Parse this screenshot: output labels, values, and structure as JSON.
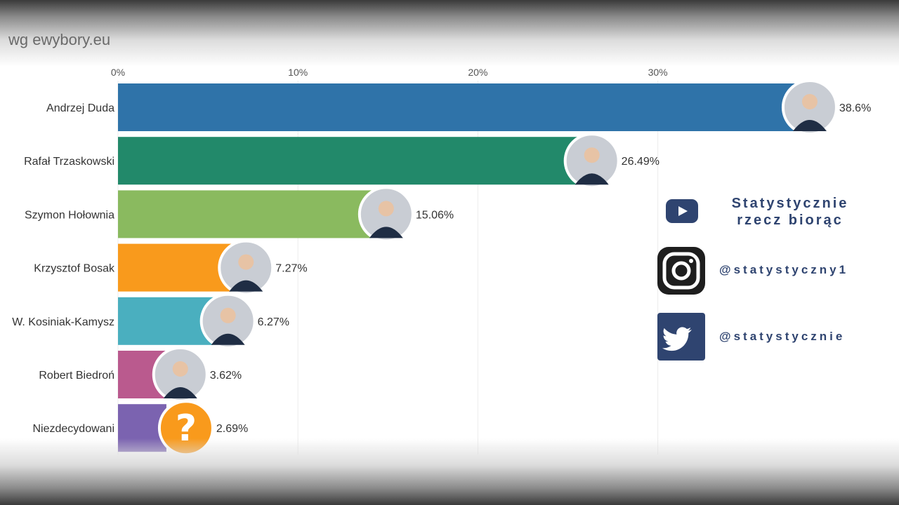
{
  "source_label": "wg ewybory.eu",
  "chart_data": {
    "type": "bar",
    "orientation": "horizontal",
    "x_ticks": [
      "0%",
      "10%",
      "20%",
      "30%"
    ],
    "xlim": [
      0,
      40
    ],
    "grid": true,
    "categories": [
      "Andrzej Duda",
      "Rafał Trzaskowski",
      "Szymon Hołownia",
      "Krzysztof Bosak",
      "W. Kosiniak-Kamysz",
      "Robert Biedroń",
      "Niezdecydowani"
    ],
    "values": [
      38.6,
      26.49,
      15.06,
      7.27,
      6.27,
      3.62,
      2.69
    ],
    "value_labels": [
      "38.6%",
      "26.49%",
      "15.06%",
      "7.27%",
      "6.27%",
      "3.62%",
      "2.69%"
    ],
    "colors": [
      "#2f73a9",
      "#22896a",
      "#8aba5f",
      "#f99a1c",
      "#4aafbf",
      "#ba5a8e",
      "#7b63b0"
    ]
  },
  "social": {
    "youtube_title": "Statystycznie rzecz biorąc",
    "instagram_handle": "@statystyczny1",
    "twitter_handle": "@statystycznie"
  },
  "icons": {
    "youtube": "youtube-icon",
    "instagram": "instagram-icon",
    "twitter": "twitter-icon",
    "undecided": "question-mark-icon"
  }
}
